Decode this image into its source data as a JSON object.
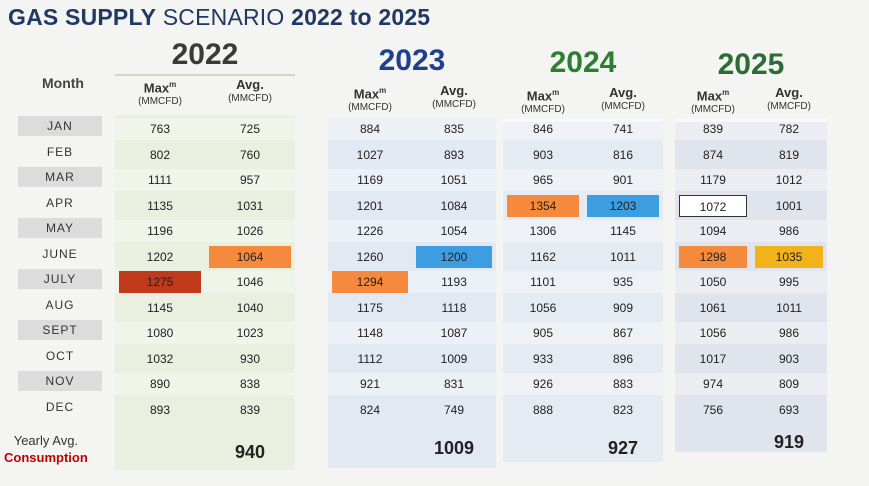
{
  "title": {
    "bold1": "GAS SUPPLY",
    "normal": "SCENARIO",
    "bold2": "2022 to 2025"
  },
  "month_header": "Month",
  "months": [
    "JAN",
    "FEB",
    "MAR",
    "APR",
    "MAY",
    "JUNE",
    "JULY",
    "AUG",
    "SEPT",
    "OCT",
    "NOV",
    "DEC"
  ],
  "col_headers": {
    "max_main": "Max",
    "max_sup": "m",
    "avg_main": "Avg.",
    "unit": "(MMCFD)"
  },
  "years": [
    {
      "label": "2022",
      "color": "#3a3a3a",
      "max": [
        "763",
        "802",
        "1111",
        "1135",
        "1196",
        "1202",
        "1275",
        "1145",
        "1080",
        "1032",
        "890",
        "893"
      ],
      "avg": [
        "725",
        "760",
        "957",
        "1031",
        "1026",
        "1064",
        "1046",
        "1040",
        "1023",
        "930",
        "838",
        "839"
      ],
      "yearly": "940"
    },
    {
      "label": "2023",
      "color": "#1f3f8f",
      "max": [
        "884",
        "1027",
        "1169",
        "1201",
        "1226",
        "1260",
        "1294",
        "1175",
        "1148",
        "1112",
        "921",
        "824"
      ],
      "avg": [
        "835",
        "893",
        "1051",
        "1084",
        "1054",
        "1200",
        "1193",
        "1118",
        "1087",
        "1009",
        "831",
        "749"
      ],
      "yearly": "1009"
    },
    {
      "label": "2024",
      "color": "#2e7d32",
      "max": [
        "846",
        "903",
        "965",
        "1354",
        "1306",
        "1162",
        "1101",
        "1056",
        "905",
        "933",
        "926",
        "888"
      ],
      "avg": [
        "741",
        "816",
        "901",
        "1203",
        "1145",
        "1011",
        "935",
        "909",
        "867",
        "896",
        "883",
        "823"
      ],
      "yearly": "927"
    },
    {
      "label": "2025",
      "color": "#2e6b36",
      "max": [
        "839",
        "874",
        "1179",
        "1072",
        "1094",
        "1298",
        "1050",
        "1061",
        "1056",
        "1017",
        "974",
        "756"
      ],
      "avg": [
        "782",
        "819",
        "1012",
        "1001",
        "986",
        "1035",
        "995",
        "1011",
        "986",
        "903",
        "809",
        "693"
      ],
      "yearly": "919"
    }
  ],
  "highlights": {
    "red": "#c0391b",
    "orange": "#f58a3c",
    "blue": "#3c9ee0",
    "amber": "#f2b21b"
  },
  "yearly_label": {
    "line1": "Yearly Avg.",
    "line2": "Consumption"
  }
}
